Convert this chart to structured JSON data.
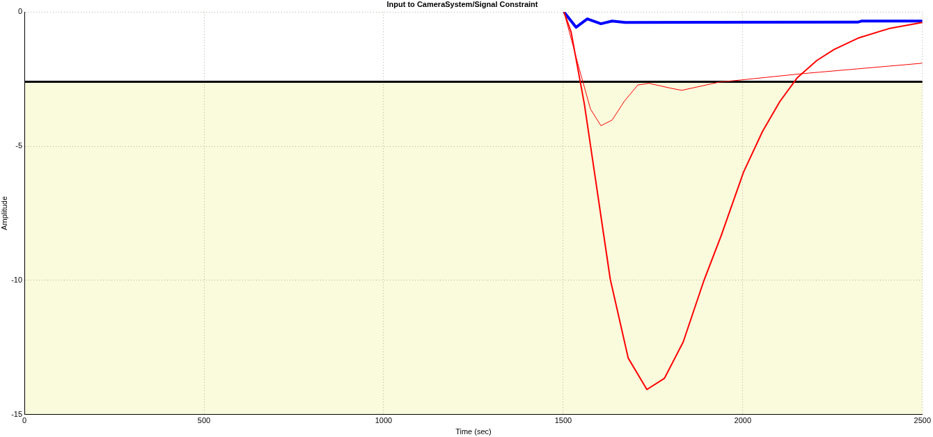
{
  "chart_data": {
    "type": "line",
    "title": "Input to CameraSystem/Signal Constraint",
    "xlabel": "Time (sec)",
    "ylabel": "Amplitude",
    "xlim": [
      0,
      2500
    ],
    "ylim": [
      -15,
      0
    ],
    "xticks": [
      0,
      500,
      1000,
      1500,
      2000,
      2500
    ],
    "yticks": [
      -15,
      -10,
      -5,
      0
    ],
    "grid": true,
    "legend": false,
    "marker": "none",
    "line_style": "solid",
    "bands": [
      {
        "axis": "y",
        "from": -15,
        "to": -2.6,
        "color": "#fafadc"
      }
    ],
    "ref_lines": [
      {
        "axis": "y",
        "value": -2.6,
        "color": "#000000"
      }
    ],
    "series": [
      {
        "color": "#ff0000",
        "x": [
          1502,
          1522,
          1559,
          1631,
          1681,
          1733,
          1782,
          1834,
          1892,
          1940,
          2002,
          2055,
          2103,
          2151,
          2206,
          2254,
          2324,
          2407,
          2500
        ],
        "values": [
          0,
          -0.75,
          -3.44,
          -9.96,
          -12.9,
          -14.07,
          -13.65,
          -12.3,
          -10.0,
          -8.33,
          -5.97,
          -4.45,
          -3.34,
          -2.46,
          -1.81,
          -1.4,
          -0.96,
          -0.62,
          -0.39
        ]
      },
      {
        "color": "#ff0000",
        "x": [
          1502,
          1549,
          1576,
          1605,
          1636,
          1671,
          1708,
          1739,
          1799,
          1830,
          1936,
          1998,
          2165,
          2500
        ],
        "values": [
          0,
          -2.33,
          -3.62,
          -4.24,
          -4.03,
          -3.31,
          -2.72,
          -2.66,
          -2.84,
          -2.92,
          -2.61,
          -2.53,
          -2.3,
          -1.91
        ]
      },
      {
        "color": "#0000ff",
        "x": [
          1502,
          1536,
          1567,
          1605,
          1636,
          1673,
          2320,
          2330,
          2500
        ],
        "values": [
          0,
          -0.57,
          -0.26,
          -0.44,
          -0.34,
          -0.39,
          -0.38,
          -0.34,
          -0.34
        ]
      }
    ]
  }
}
